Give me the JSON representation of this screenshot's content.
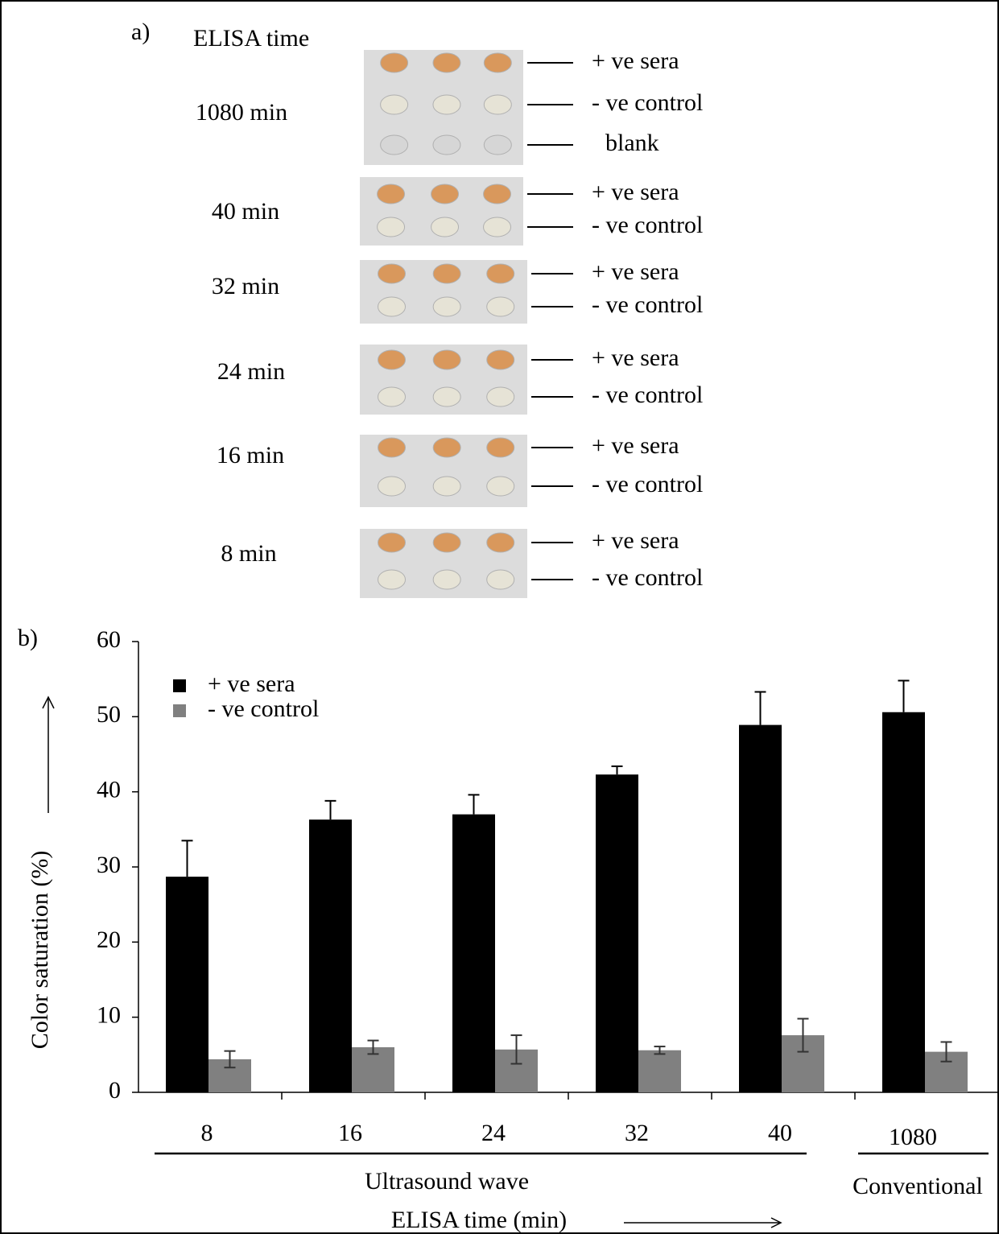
{
  "panel_a": {
    "label": "a)",
    "header": "ELISA time",
    "rows": [
      {
        "time": "1080 min",
        "wells": [
          "+ ve sera",
          "- ve control",
          "blank"
        ]
      },
      {
        "time": "40 min",
        "wells": [
          "+ ve sera",
          "- ve control"
        ]
      },
      {
        "time": "32 min",
        "wells": [
          "+ ve sera",
          "- ve control"
        ]
      },
      {
        "time": "24 min",
        "wells": [
          "+ ve sera",
          "- ve control"
        ]
      },
      {
        "time": "16 min",
        "wells": [
          "+ ve sera",
          "- ve control"
        ]
      },
      {
        "time": "8 min",
        "wells": [
          "+ ve sera",
          "- ve control"
        ]
      }
    ]
  },
  "chart_data": {
    "type": "bar",
    "panel_label": "b)",
    "ylabel": "Color saturation (%)",
    "xlabel": "ELISA time (min)",
    "groups": [
      {
        "label": "Ultrasound wave",
        "categories": [
          "8",
          "16",
          "24",
          "32",
          "40"
        ]
      },
      {
        "label": "Conventional",
        "categories": [
          "1080"
        ]
      }
    ],
    "series": [
      {
        "name": "+ ve sera",
        "color": "#000000",
        "values": [
          28.7,
          36.3,
          37.0,
          42.3,
          48.9,
          50.6
        ],
        "errors": [
          4.8,
          2.5,
          2.6,
          1.1,
          4.4,
          4.2
        ]
      },
      {
        "name": "- ve control",
        "color": "#808080",
        "values": [
          4.4,
          6.0,
          5.7,
          5.6,
          7.6,
          5.4
        ],
        "errors": [
          1.1,
          0.9,
          1.9,
          0.5,
          2.2,
          1.3
        ]
      }
    ],
    "ylim": [
      0,
      60
    ],
    "yticks": [
      0,
      10,
      20,
      30,
      40,
      50,
      60
    ],
    "legend": "upper left"
  }
}
